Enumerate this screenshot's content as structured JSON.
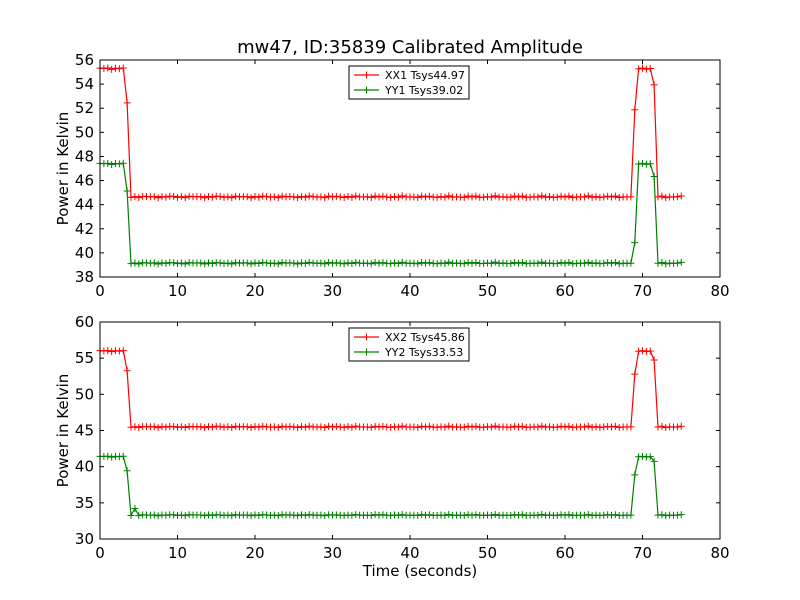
{
  "title": "mw47, ID:35839 Calibrated Amplitude",
  "chart_data": [
    {
      "type": "line",
      "title": "mw47, ID:35839 Calibrated Amplitude",
      "xlabel": "",
      "ylabel": "Power in Kelvin",
      "xlim": [
        0,
        80
      ],
      "ylim": [
        38,
        56
      ],
      "xticks": [
        0,
        10,
        20,
        30,
        40,
        50,
        60,
        70,
        80
      ],
      "yticks": [
        38,
        40,
        42,
        44,
        46,
        48,
        50,
        52,
        54,
        56
      ],
      "grid": false,
      "legend": "upper-center",
      "series": [
        {
          "name": "XX1 Tsys44.97",
          "color": "#ff0000",
          "low": 44.65,
          "high": 55.3,
          "noise": 0.08,
          "transitions": [
            [
              3.5,
              52.4
            ],
            [
              69.0,
              51.8
            ],
            [
              71.4,
              53.9
            ],
            [
              71.8,
              49.3
            ]
          ]
        },
        {
          "name": "YY1 Tsys39.02",
          "color": "#008000",
          "low": 39.15,
          "high": 47.4,
          "noise": 0.07,
          "transitions": [
            [
              3.5,
              45.1
            ],
            [
              71.4,
              46.3
            ],
            [
              71.8,
              42.7
            ]
          ]
        }
      ]
    },
    {
      "type": "line",
      "title": "",
      "xlabel": "Time (seconds)",
      "ylabel": "Power in Kelvin",
      "xlim": [
        0,
        80
      ],
      "ylim": [
        30,
        60
      ],
      "xticks": [
        0,
        10,
        20,
        30,
        40,
        50,
        60,
        70,
        80
      ],
      "yticks": [
        30,
        35,
        40,
        45,
        50,
        55,
        60
      ],
      "grid": false,
      "legend": "upper-center",
      "series": [
        {
          "name": "XX2 Tsys45.86",
          "color": "#ff0000",
          "low": 45.5,
          "high": 56.0,
          "noise": 0.1,
          "transitions": [
            [
              3.5,
              53.2
            ],
            [
              69.0,
              52.7
            ],
            [
              71.4,
              54.7
            ],
            [
              71.8,
              50.2
            ]
          ]
        },
        {
          "name": "YY2 Tsys33.53",
          "color": "#008000",
          "low": 33.3,
          "high": 41.4,
          "noise": 0.08,
          "transitions": [
            [
              3.5,
              39.4
            ],
            [
              4.4,
              34.2
            ],
            [
              69.0,
              38.8
            ],
            [
              71.4,
              40.7
            ],
            [
              71.8,
              36.8
            ]
          ]
        }
      ]
    }
  ]
}
